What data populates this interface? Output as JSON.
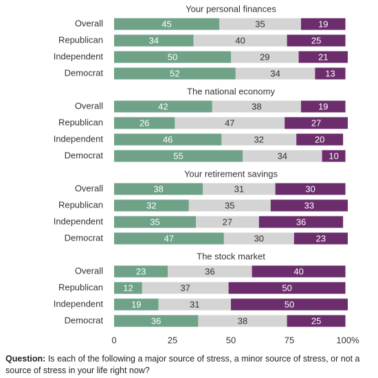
{
  "chart_data": [
    {
      "type": "bar",
      "orientation": "horizontal",
      "stacked": true,
      "title": "Your personal finances",
      "categories": [
        "Overall",
        "Republican",
        "Independent",
        "Democrat"
      ],
      "xlim": [
        0,
        100
      ],
      "series": [
        {
          "color": "#6fa287",
          "values": [
            45,
            34,
            50,
            52
          ]
        },
        {
          "color": "#d4d4d4",
          "values": [
            35,
            40,
            29,
            34
          ]
        },
        {
          "color": "#6b2d6c",
          "values": [
            19,
            25,
            21,
            13
          ]
        }
      ]
    },
    {
      "type": "bar",
      "orientation": "horizontal",
      "stacked": true,
      "title": "The national economy",
      "categories": [
        "Overall",
        "Republican",
        "Independent",
        "Democrat"
      ],
      "xlim": [
        0,
        100
      ],
      "series": [
        {
          "color": "#6fa287",
          "values": [
            42,
            26,
            46,
            55
          ]
        },
        {
          "color": "#d4d4d4",
          "values": [
            38,
            47,
            32,
            34
          ]
        },
        {
          "color": "#6b2d6c",
          "values": [
            19,
            27,
            20,
            10
          ]
        }
      ]
    },
    {
      "type": "bar",
      "orientation": "horizontal",
      "stacked": true,
      "title": "Your retirement savings",
      "categories": [
        "Overall",
        "Republican",
        "Independent",
        "Democrat"
      ],
      "xlim": [
        0,
        100
      ],
      "series": [
        {
          "color": "#6fa287",
          "values": [
            38,
            32,
            35,
            47
          ]
        },
        {
          "color": "#d4d4d4",
          "values": [
            31,
            35,
            27,
            30
          ]
        },
        {
          "color": "#6b2d6c",
          "values": [
            30,
            33,
            36,
            23
          ]
        }
      ]
    },
    {
      "type": "bar",
      "orientation": "horizontal",
      "stacked": true,
      "title": "The stock market",
      "categories": [
        "Overall",
        "Republican",
        "Independent",
        "Democrat"
      ],
      "xlim": [
        0,
        100
      ],
      "xticks": [
        0,
        25,
        50,
        75,
        {
          "value": 100,
          "label": "100%"
        }
      ],
      "series": [
        {
          "color": "#6fa287",
          "values": [
            23,
            12,
            19,
            36
          ]
        },
        {
          "color": "#d4d4d4",
          "values": [
            36,
            37,
            31,
            38
          ]
        },
        {
          "color": "#6b2d6c",
          "values": [
            40,
            50,
            50,
            25
          ]
        }
      ]
    }
  ],
  "footnote": {
    "label": "Question:",
    "text": "Is each of the following a major source of stress, a minor source of stress, or not a source of stress in your life right now?"
  }
}
